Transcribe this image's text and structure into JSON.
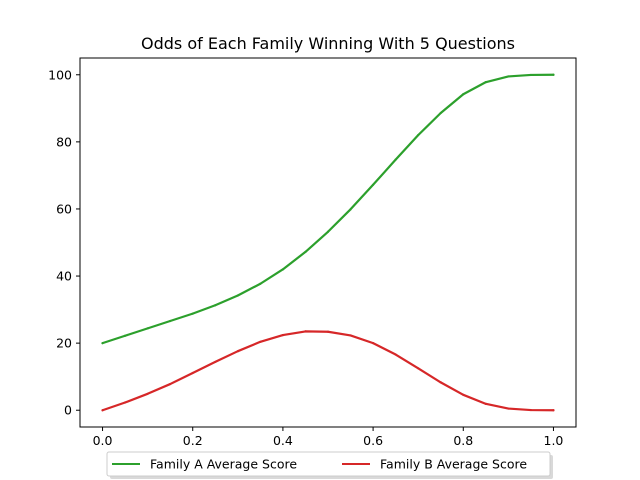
{
  "chart_data": {
    "type": "line",
    "title": "Odds of Each Family Winning With 5 Questions",
    "xlabel": "",
    "ylabel": "",
    "xlim": [
      -0.05,
      1.05
    ],
    "ylim": [
      -5,
      105
    ],
    "xticks": [
      0.0,
      0.2,
      0.4,
      0.6,
      0.8,
      1.0
    ],
    "xtick_labels": [
      "0.0",
      "0.2",
      "0.4",
      "0.6",
      "0.8",
      "1.0"
    ],
    "yticks": [
      0,
      20,
      40,
      60,
      80,
      100
    ],
    "ytick_labels": [
      "0",
      "20",
      "40",
      "60",
      "80",
      "100"
    ],
    "grid": false,
    "legend_position": "bottom-center, outside the axes",
    "x": [
      0.0,
      0.05,
      0.1,
      0.15,
      0.2,
      0.25,
      0.3,
      0.35,
      0.4,
      0.45,
      0.5,
      0.55,
      0.6,
      0.65,
      0.7,
      0.75,
      0.8,
      0.85,
      0.9,
      0.95,
      1.0
    ],
    "series": [
      {
        "name": "Family A Average Score",
        "color": "#2ca02c",
        "values": [
          20.0,
          22.2,
          24.4,
          26.6,
          28.8,
          31.3,
          34.2,
          37.7,
          42.0,
          47.2,
          53.2,
          59.9,
          67.2,
          74.7,
          82.0,
          88.6,
          94.2,
          97.8,
          99.5,
          99.95,
          100.0
        ]
      },
      {
        "name": "Family B Average Score",
        "color": "#d62728",
        "values": [
          0.0,
          2.3,
          4.9,
          7.8,
          11.1,
          14.4,
          17.6,
          20.4,
          22.4,
          23.5,
          23.4,
          22.3,
          20.0,
          16.6,
          12.5,
          8.3,
          4.6,
          1.9,
          0.5,
          0.05,
          0.0
        ]
      }
    ]
  }
}
